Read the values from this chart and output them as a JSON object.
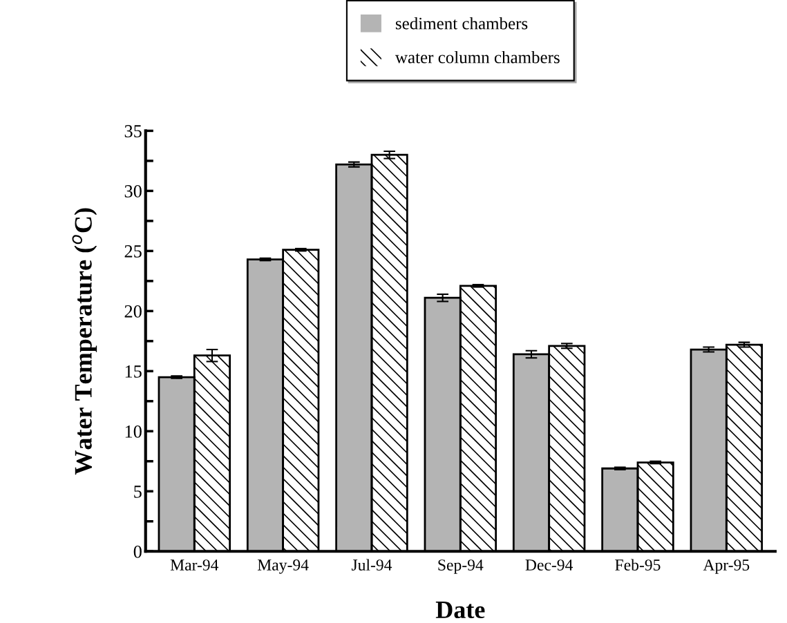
{
  "chart_data": {
    "type": "bar",
    "xlabel": "Date",
    "ylabel": "Water Temperature ($^{o}$C)",
    "categories": [
      "Mar-94",
      "May-94",
      "Jul-94",
      "Sep-94",
      "Dec-94",
      "Feb-95",
      "Apr-95"
    ],
    "series": [
      {
        "name": "sediment chambers",
        "color": "#b4b4b4",
        "values": [
          14.5,
          24.3,
          32.2,
          21.1,
          16.4,
          6.9,
          16.8
        ],
        "errors": [
          0.1,
          0.1,
          0.2,
          0.3,
          0.3,
          0.1,
          0.2
        ]
      },
      {
        "name": "water column chambers",
        "color": "#ffffff",
        "values": [
          16.3,
          25.1,
          33.0,
          22.1,
          17.1,
          7.4,
          17.2
        ],
        "errors": [
          0.5,
          0.1,
          0.3,
          0.1,
          0.2,
          0.1,
          0.2
        ]
      }
    ],
    "ylim": [
      0,
      35
    ],
    "yticks": [
      0,
      {
        "value": 2.5,
        "label": null
      },
      5,
      {
        "value": 7.5,
        "label": null
      },
      10,
      {
        "value": 12.5,
        "label": null
      },
      15,
      {
        "value": 17.5,
        "label": null
      },
      20,
      {
        "value": 22.5,
        "label": null
      },
      25,
      {
        "value": 27.5,
        "label": null
      },
      30,
      {
        "value": 32.5,
        "label": null
      },
      35
    ],
    "grid": false,
    "legend": "top"
  }
}
